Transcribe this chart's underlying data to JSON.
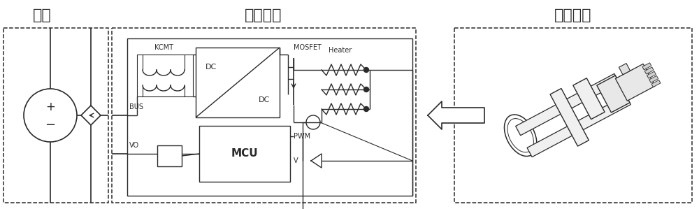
{
  "title_power": "电源",
  "title_control": "控制电路",
  "title_blade": "刀身本体",
  "label_bus": "BUS",
  "label_vo": "VO",
  "label_kcmt": "KCMT",
  "label_dc1": "DC",
  "label_dc2": "DC",
  "label_mosfet": "MOSFET",
  "label_heater": "Heater",
  "label_pwm": "PWM",
  "label_mcu": "MCU",
  "label_v": "V",
  "bg_color": "#ffffff",
  "line_color": "#2a2a2a",
  "dash_color": "#2a2a2a",
  "font_size_title": 16,
  "font_size_label": 7,
  "figsize": [
    10.0,
    2.99
  ],
  "dpi": 100
}
